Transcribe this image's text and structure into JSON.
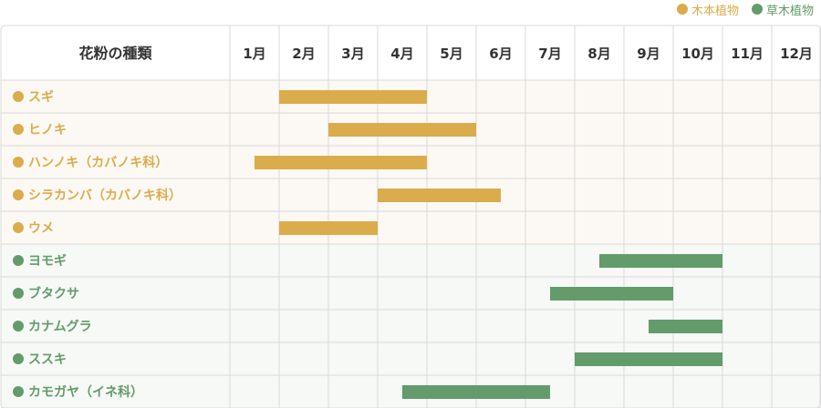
{
  "colors": {
    "tree": "#dbac4b",
    "grass": "#649b6a",
    "text": "#333333",
    "grid": "#d9d9d9",
    "tree_bg": "#fcf9f4",
    "grass_bg": "#f6f9f6",
    "header_bg": "#ffffff"
  },
  "legend": [
    {
      "label": "木本植物",
      "group": "tree"
    },
    {
      "label": "草木植物",
      "group": "grass"
    }
  ],
  "chart_data": {
    "type": "bar",
    "header_label": "花粉の種類",
    "months": [
      "1月",
      "2月",
      "3月",
      "4月",
      "5月",
      "6月",
      "7月",
      "8月",
      "9月",
      "10月",
      "11月",
      "12月"
    ],
    "rows": [
      {
        "name": "スギ",
        "group": "tree",
        "start": 2.0,
        "end": 5.0
      },
      {
        "name": "ヒノキ",
        "group": "tree",
        "start": 3.0,
        "end": 6.0
      },
      {
        "name": "ハンノキ（カバノキ科）",
        "group": "tree",
        "start": 1.5,
        "end": 5.0
      },
      {
        "name": "シラカンバ（カバノキ科）",
        "group": "tree",
        "start": 4.0,
        "end": 6.5
      },
      {
        "name": "ウメ",
        "group": "tree",
        "start": 2.0,
        "end": 4.0
      },
      {
        "name": "ヨモギ",
        "group": "grass",
        "start": 8.5,
        "end": 11.0
      },
      {
        "name": "ブタクサ",
        "group": "grass",
        "start": 7.5,
        "end": 10.0
      },
      {
        "name": "カナムグラ",
        "group": "grass",
        "start": 9.5,
        "end": 11.0
      },
      {
        "name": "ススキ",
        "group": "grass",
        "start": 8.0,
        "end": 11.0
      },
      {
        "name": "カモガヤ（イネ科）",
        "group": "grass",
        "start": 4.5,
        "end": 7.5
      }
    ]
  }
}
